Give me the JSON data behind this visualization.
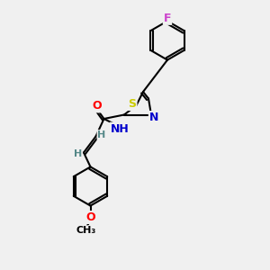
{
  "background_color": "#f0f0f0",
  "bond_color": "#000000",
  "atom_colors": {
    "F": "#cc44cc",
    "S": "#cccc00",
    "N": "#0000cc",
    "O": "#ff0000",
    "H": "#558888",
    "C": "#000000"
  },
  "font_size": 9,
  "fig_size": [
    3.0,
    3.0
  ],
  "dpi": 100
}
